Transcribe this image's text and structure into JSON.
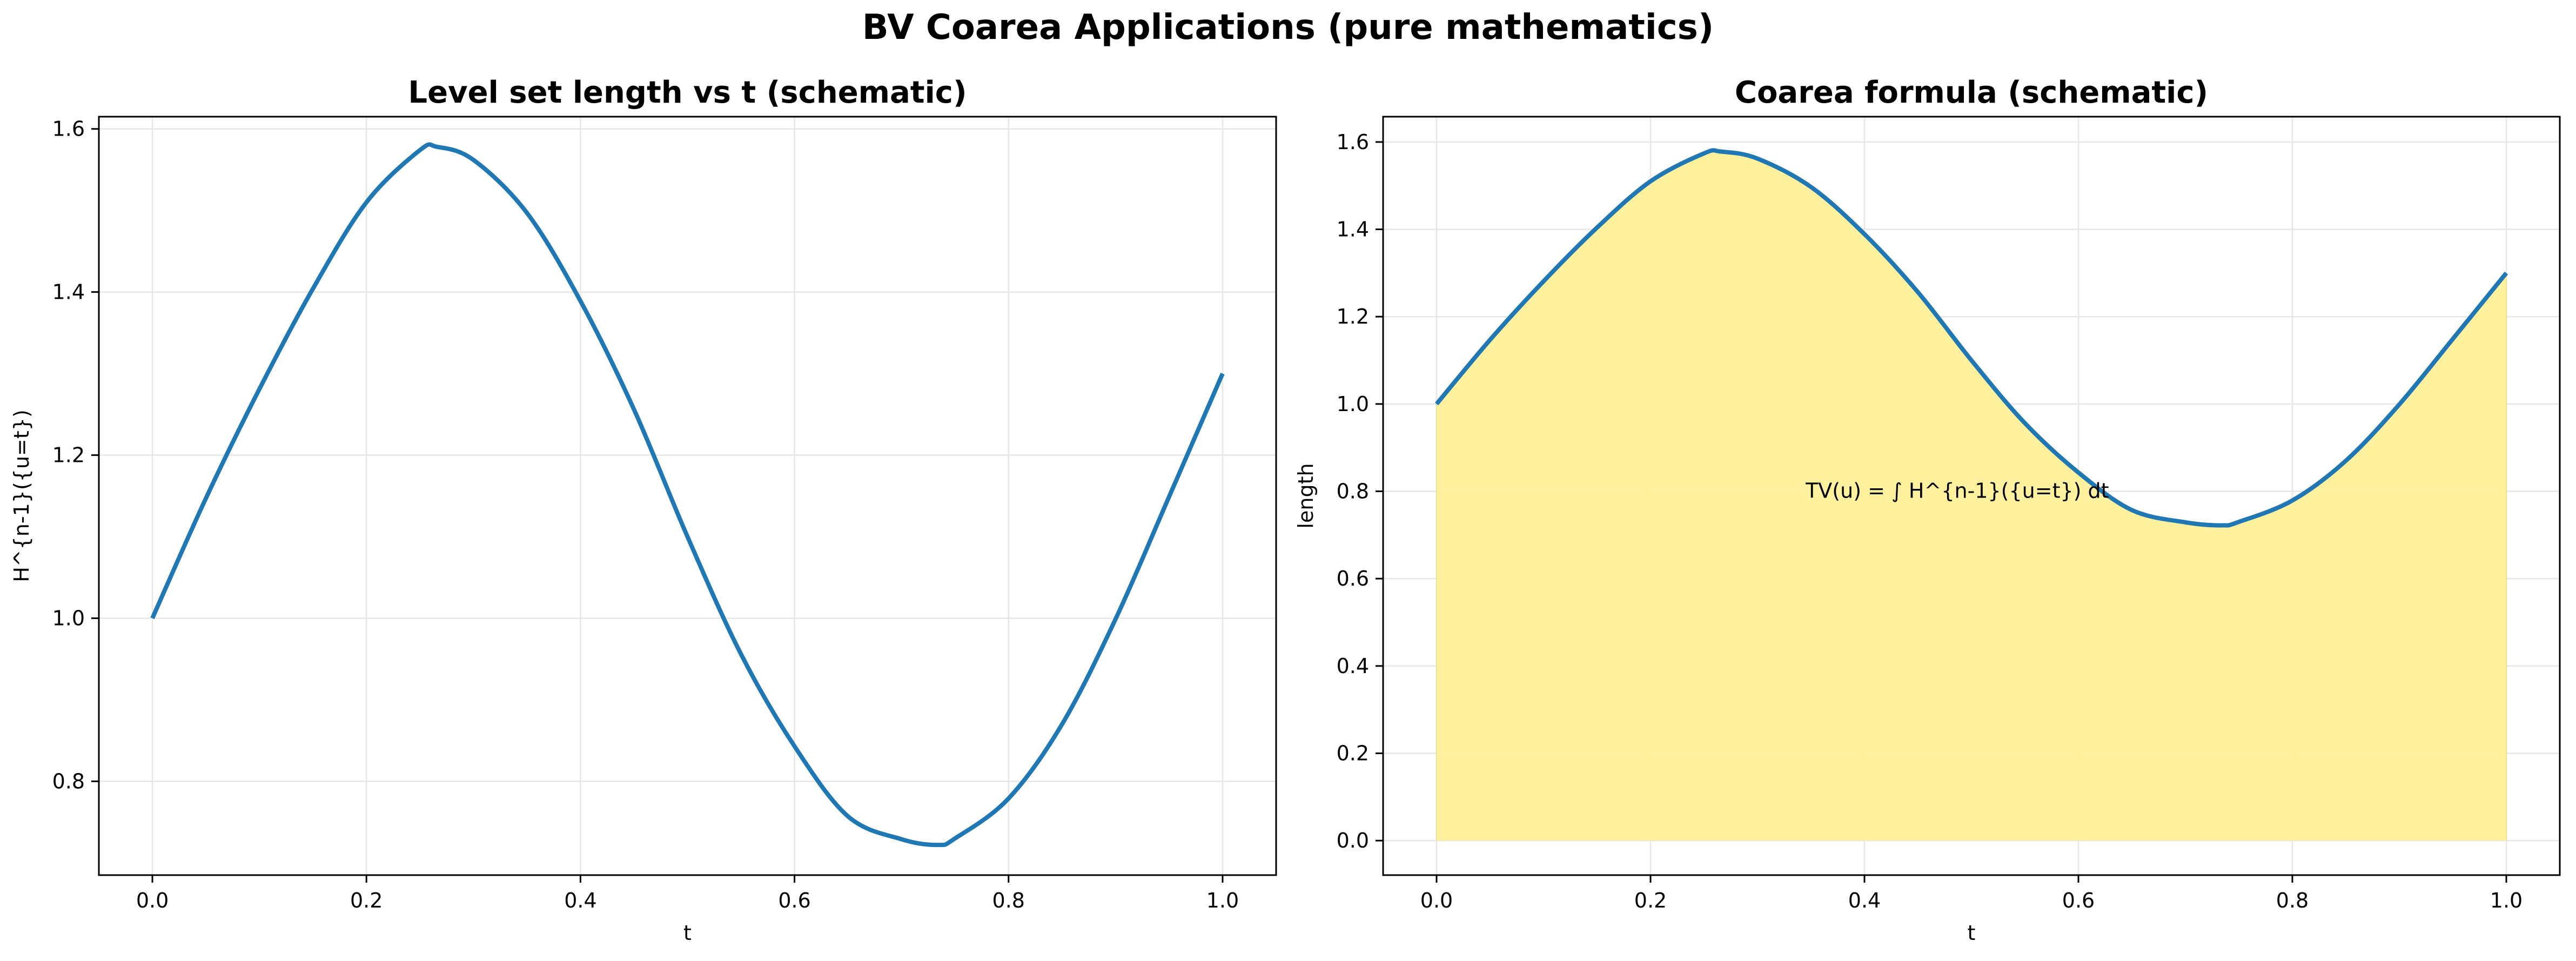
{
  "figure": {
    "suptitle": "BV Coarea Applications (pure mathematics)"
  },
  "colors": {
    "line": "#1f77b4",
    "fill": "#fff099",
    "grid": "#e6e6e6",
    "axis": "#000000"
  },
  "chart_data": [
    {
      "type": "line",
      "title": "Level set length vs t (schematic)",
      "xlabel": "t",
      "ylabel": "H^{n-1}({u=t})",
      "xlim": [
        -0.05,
        1.05
      ],
      "ylim": [
        0.685,
        1.615
      ],
      "xticks": [
        0.0,
        0.2,
        0.4,
        0.6,
        0.8,
        1.0
      ],
      "xtick_labels": [
        "0.0",
        "0.2",
        "0.4",
        "0.6",
        "0.8",
        "1.0"
      ],
      "yticks": [
        0.8,
        1.0,
        1.2,
        1.4,
        1.6
      ],
      "ytick_labels": [
        "0.8",
        "1.0",
        "1.2",
        "1.4",
        "1.6"
      ],
      "grid": true,
      "series": [
        {
          "x": [
            0.0,
            0.05,
            0.1,
            0.15,
            0.2,
            0.25,
            0.266,
            0.3,
            0.35,
            0.4,
            0.45,
            0.5,
            0.55,
            0.6,
            0.65,
            0.7,
            0.734,
            0.75,
            0.8,
            0.85,
            0.9,
            0.95,
            1.0
          ],
          "y": [
            1.0,
            1.147,
            1.281,
            1.404,
            1.51,
            1.574,
            1.578,
            1.562,
            1.497,
            1.389,
            1.256,
            1.1,
            0.956,
            0.843,
            0.757,
            0.729,
            0.722,
            0.73,
            0.779,
            0.87,
            0.999,
            1.149,
            1.3
          ]
        }
      ]
    },
    {
      "type": "area",
      "title": "Coarea formula (schematic)",
      "xlabel": "t",
      "ylabel": "length",
      "xlim": [
        -0.05,
        1.05
      ],
      "ylim": [
        -0.079,
        1.658
      ],
      "xticks": [
        0.0,
        0.2,
        0.4,
        0.6,
        0.8,
        1.0
      ],
      "xtick_labels": [
        "0.0",
        "0.2",
        "0.4",
        "0.6",
        "0.8",
        "1.0"
      ],
      "yticks": [
        0.0,
        0.2,
        0.4,
        0.6,
        0.8,
        1.0,
        1.2,
        1.4,
        1.6
      ],
      "ytick_labels": [
        "0.0",
        "0.2",
        "0.4",
        "0.6",
        "0.8",
        "1.0",
        "1.2",
        "1.4",
        "1.6"
      ],
      "grid": true,
      "annotation": {
        "text": "TV(u) = ∫ H^{n-1}({u=t}) dt",
        "x": 0.345,
        "y": 0.8
      },
      "series": [
        {
          "x": [
            0.0,
            0.05,
            0.1,
            0.15,
            0.2,
            0.25,
            0.266,
            0.3,
            0.35,
            0.4,
            0.45,
            0.5,
            0.55,
            0.6,
            0.65,
            0.7,
            0.734,
            0.75,
            0.8,
            0.85,
            0.9,
            0.95,
            1.0
          ],
          "y": [
            1.0,
            1.147,
            1.281,
            1.404,
            1.51,
            1.574,
            1.578,
            1.562,
            1.497,
            1.389,
            1.256,
            1.1,
            0.956,
            0.843,
            0.757,
            0.729,
            0.722,
            0.73,
            0.779,
            0.87,
            0.999,
            1.149,
            1.3
          ]
        }
      ]
    }
  ]
}
